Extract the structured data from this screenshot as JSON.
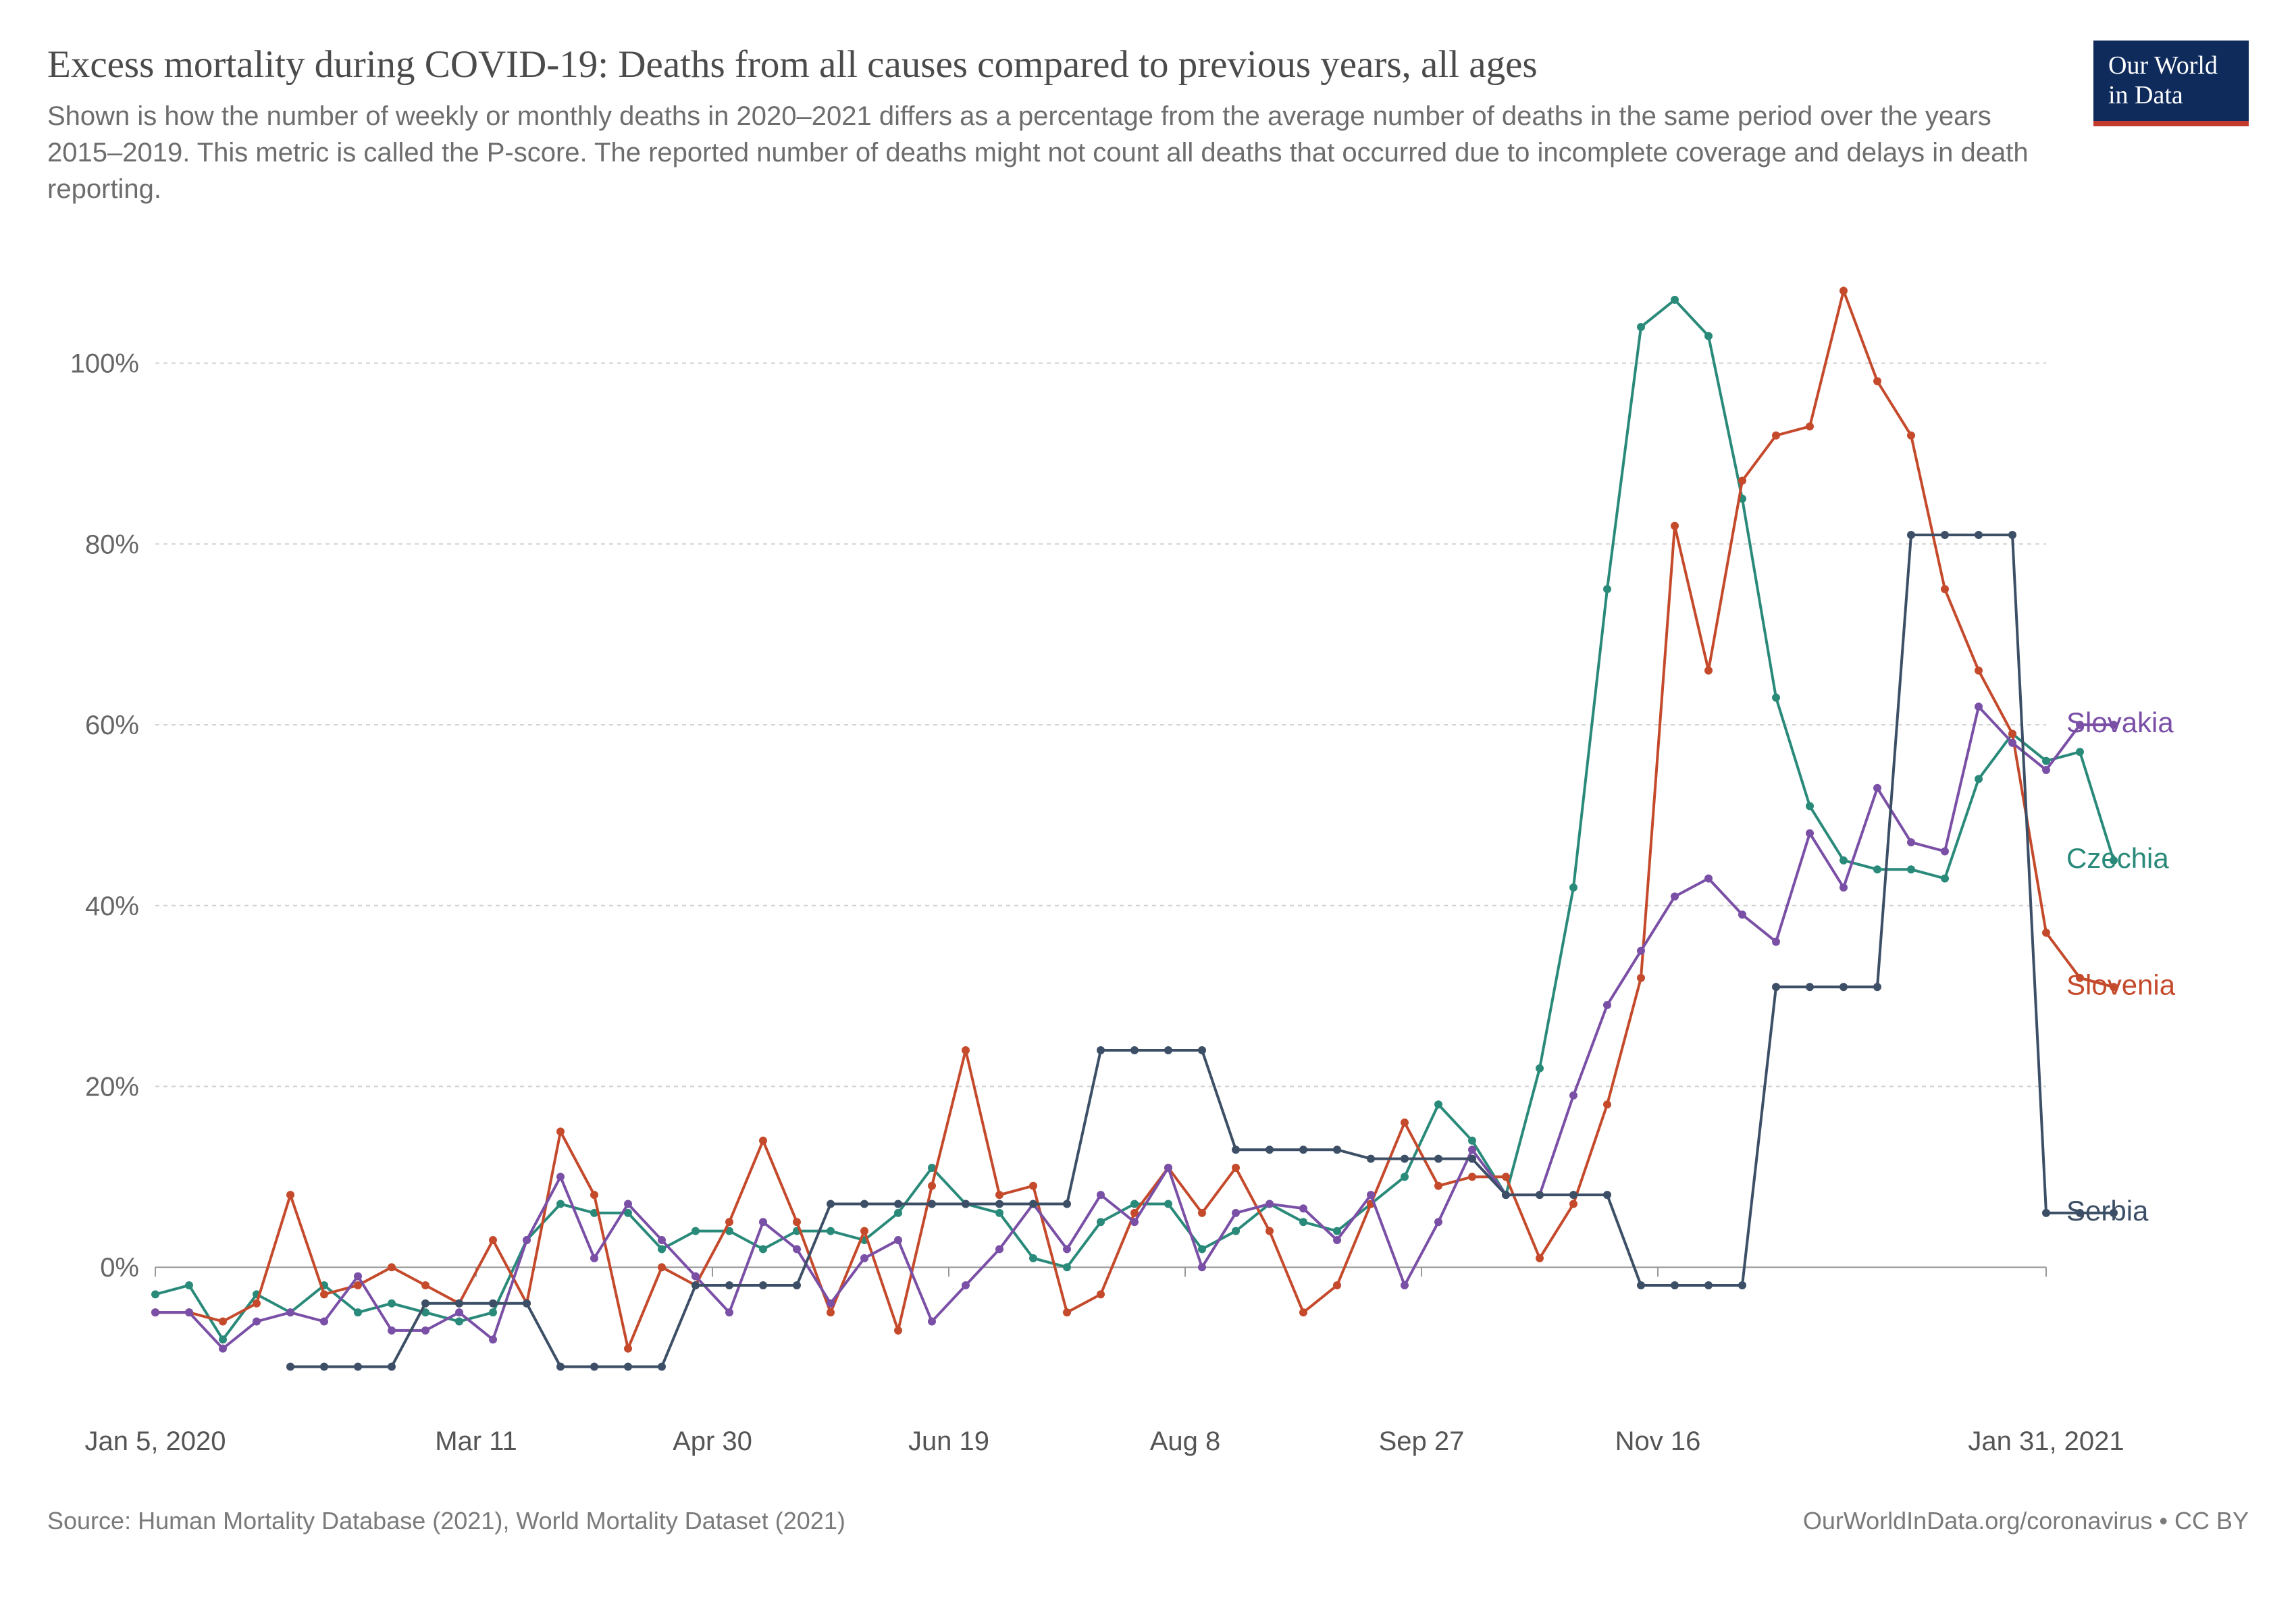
{
  "header": {
    "title": "Excess mortality during COVID-19: Deaths from all causes compared to previous years, all ages",
    "subtitle": "Shown is how the number of weekly or monthly deaths in 2020–2021 differs as a percentage from the average number of deaths in the same period over the years 2015–2019. This metric is called the P-score. The reported number of deaths might not count all deaths that occurred due to incomplete coverage and delays in death reporting.",
    "logo_line1": "Our World",
    "logo_line2": "in Data"
  },
  "footer": {
    "source": "Source: Human Mortality Database (2021), World Mortality Dataset (2021)",
    "credit": "OurWorldInData.org/coronavirus • CC BY"
  },
  "chart": {
    "type": "line",
    "background_color": "#ffffff",
    "grid_color": "#cfcfcf",
    "axis_color": "#999999",
    "y": {
      "min": -15,
      "max": 112,
      "ticks": [
        0,
        20,
        40,
        60,
        80,
        100
      ],
      "tick_labels": [
        "0%",
        "20%",
        "40%",
        "60%",
        "80%",
        "100%"
      ],
      "label_fontsize": 40,
      "label_color": "#666666"
    },
    "x": {
      "min": 0,
      "max": 56,
      "ticks": [
        0,
        9.5,
        16.5,
        23.5,
        30.5,
        37.5,
        44.5,
        56
      ],
      "tick_labels": [
        "Jan 5, 2020",
        "Mar 11",
        "Apr 30",
        "Jun 19",
        "Aug 8",
        "Sep 27",
        "Nov 16",
        "Jan 31, 2021"
      ],
      "label_fontsize": 40,
      "label_color": "#555555"
    },
    "line_width": 4,
    "marker_radius": 6,
    "series": [
      {
        "name": "Czechia",
        "color": "#2a8a7a",
        "values": [
          -3,
          -2,
          -8,
          -3,
          -5,
          -2,
          -5,
          -4,
          -5,
          -6,
          -5,
          3,
          7,
          6,
          6,
          2,
          4,
          4,
          2,
          4,
          4,
          3,
          6,
          11,
          7,
          6,
          1,
          0,
          5,
          7,
          7,
          2,
          4,
          7,
          5,
          4,
          7,
          10,
          18,
          14,
          8,
          22,
          42,
          75,
          104,
          107,
          103,
          85,
          63,
          51,
          45,
          44,
          44,
          43,
          54,
          59,
          56,
          57,
          45
        ],
        "legend_y": 45
      },
      {
        "name": "Slovenia",
        "color": "#c54a2c",
        "values": [
          -5,
          -5,
          -6,
          -4,
          8,
          -3,
          -2,
          0,
          -2,
          -4,
          3,
          -4,
          15,
          8,
          -9,
          0,
          -2,
          5,
          14,
          5,
          -5,
          4,
          -7,
          9,
          24,
          8,
          9,
          -5,
          -3,
          6,
          11,
          6,
          11,
          4,
          -5,
          -2,
          7,
          16,
          9,
          10,
          10,
          1,
          7,
          18,
          32,
          82,
          66,
          87,
          92,
          93,
          108,
          98,
          92,
          75,
          66,
          59,
          37,
          32,
          31
        ],
        "legend_y": 31
      },
      {
        "name": "Slovakia",
        "color": "#7a4fa6",
        "values": [
          -5,
          -5,
          -9,
          -6,
          -5,
          -6,
          -1,
          -7,
          -7,
          -5,
          -8,
          3,
          10,
          1,
          7,
          3,
          -1,
          -5,
          5,
          2,
          -4,
          1,
          3,
          -6,
          -2,
          2,
          7,
          2,
          8,
          5,
          11,
          0,
          6,
          7,
          6.5,
          3,
          8,
          -2,
          5,
          13,
          8,
          8,
          19,
          29,
          35,
          41,
          43,
          39,
          36,
          48,
          42,
          53,
          47,
          46,
          62,
          58,
          55,
          60,
          60
        ],
        "legend_y": 60
      },
      {
        "name": "Serbia",
        "color": "#3c4f66",
        "values": [
          null,
          null,
          null,
          null,
          -11,
          -11,
          -11,
          -11,
          -4,
          -4,
          -4,
          -4,
          -11,
          -11,
          -11,
          -11,
          -2,
          -2,
          -2,
          -2,
          7,
          7,
          7,
          7,
          7,
          7,
          7,
          7,
          24,
          24,
          24,
          24,
          13,
          13,
          13,
          13,
          12,
          12,
          12,
          12,
          8,
          8,
          8,
          8,
          -2,
          -2,
          -2,
          -2,
          31,
          31,
          31,
          31,
          81,
          81,
          81,
          81,
          6,
          6,
          6
        ],
        "legend_y": 6
      }
    ]
  }
}
